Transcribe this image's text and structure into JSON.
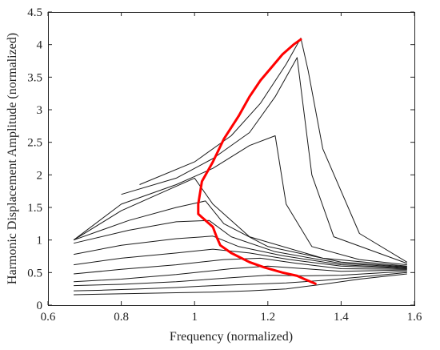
{
  "chart_data": {
    "type": "line",
    "title": "",
    "xlabel": "Frequency (normalized)",
    "ylabel": "Harmonic Displacement Amplitude (normalized)",
    "xlim": [
      0.6,
      1.6
    ],
    "ylim": [
      0,
      4.5
    ],
    "xticks": [
      "0.6",
      "0.8",
      "1",
      "1.2",
      "1.4",
      "1.6"
    ],
    "yticks": [
      "0",
      "0.5",
      "1",
      "1.5",
      "2",
      "2.5",
      "3",
      "3.5",
      "4",
      "4.5"
    ],
    "grid": false,
    "legend": "none",
    "colors": {
      "curves": "#1a1a1a",
      "backbone": "#ff0000",
      "frame": "#262626"
    },
    "curve_count": 24,
    "series": [
      {
        "role": "backbone",
        "x": [
          1.33,
          1.3,
          1.28,
          1.24,
          1.19,
          1.15,
          1.1,
          1.07,
          1.06,
          1.05,
          1.03,
          1.01,
          1.01,
          1.02,
          1.05,
          1.08,
          1.12,
          1.15,
          1.18,
          1.21,
          1.24,
          1.27,
          1.29
        ],
        "y": [
          0.33,
          0.4,
          0.45,
          0.5,
          0.58,
          0.66,
          0.8,
          0.92,
          1.05,
          1.2,
          1.3,
          1.4,
          1.55,
          1.9,
          2.2,
          2.55,
          2.9,
          3.2,
          3.45,
          3.65,
          3.85,
          4.0,
          4.08
        ]
      },
      {
        "role": "response",
        "x": [
          0.67,
          0.75,
          0.85,
          0.95,
          1.05,
          1.15,
          1.25,
          1.35,
          1.45,
          1.58
        ],
        "y": [
          0.16,
          0.17,
          0.18,
          0.19,
          0.2,
          0.22,
          0.25,
          0.32,
          0.4,
          0.48
        ]
      },
      {
        "role": "response",
        "x": [
          0.67,
          0.75,
          0.85,
          0.95,
          1.05,
          1.15,
          1.25,
          1.35,
          1.45,
          1.58
        ],
        "y": [
          0.22,
          0.23,
          0.25,
          0.27,
          0.3,
          0.32,
          0.34,
          0.38,
          0.43,
          0.5
        ]
      },
      {
        "role": "response",
        "x": [
          0.67,
          0.8,
          0.95,
          1.1,
          1.2,
          1.3,
          1.4,
          1.58
        ],
        "y": [
          0.3,
          0.32,
          0.36,
          0.42,
          0.46,
          0.45,
          0.46,
          0.52
        ]
      },
      {
        "role": "response",
        "x": [
          0.67,
          0.8,
          0.95,
          1.1,
          1.2,
          1.3,
          1.4,
          1.58
        ],
        "y": [
          0.36,
          0.4,
          0.47,
          0.56,
          0.6,
          0.56,
          0.52,
          0.54
        ]
      },
      {
        "role": "response",
        "x": [
          0.67,
          0.8,
          0.95,
          1.08,
          1.18,
          1.28,
          1.4,
          1.58
        ],
        "y": [
          0.48,
          0.55,
          0.62,
          0.7,
          0.72,
          0.64,
          0.56,
          0.55
        ]
      },
      {
        "role": "response",
        "x": [
          0.67,
          0.8,
          0.95,
          1.05,
          1.15,
          1.26,
          1.4,
          1.58
        ],
        "y": [
          0.62,
          0.72,
          0.8,
          0.86,
          0.8,
          0.7,
          0.6,
          0.56
        ]
      },
      {
        "role": "response",
        "x": [
          0.67,
          0.8,
          0.95,
          1.05,
          1.12,
          1.24,
          1.4,
          1.58
        ],
        "y": [
          0.78,
          0.92,
          1.02,
          1.06,
          0.9,
          0.76,
          0.62,
          0.57
        ]
      },
      {
        "role": "response",
        "x": [
          0.67,
          0.82,
          0.95,
          1.04,
          1.1,
          1.22,
          1.4,
          1.58
        ],
        "y": [
          0.95,
          1.15,
          1.28,
          1.3,
          1.05,
          0.82,
          0.64,
          0.58
        ]
      },
      {
        "role": "response",
        "x": [
          0.67,
          0.82,
          0.95,
          1.03,
          1.08,
          1.2,
          1.4,
          1.58
        ],
        "y": [
          1.0,
          1.3,
          1.5,
          1.6,
          1.25,
          0.9,
          0.66,
          0.59
        ]
      },
      {
        "role": "response",
        "x": [
          0.67,
          0.8,
          0.9,
          1.0,
          1.05,
          1.15,
          1.35,
          1.58
        ],
        "y": [
          1.0,
          1.45,
          1.7,
          1.95,
          1.55,
          1.05,
          0.72,
          0.6
        ]
      },
      {
        "role": "response",
        "x": [
          0.67,
          0.8,
          0.95,
          1.05,
          1.15,
          1.22,
          1.25,
          1.32,
          1.45,
          1.58
        ],
        "y": [
          1.0,
          1.55,
          1.85,
          2.1,
          2.45,
          2.6,
          1.55,
          0.9,
          0.7,
          0.62
        ]
      },
      {
        "role": "response",
        "x": [
          0.8,
          0.95,
          1.05,
          1.15,
          1.22,
          1.28,
          1.32,
          1.38,
          1.58
        ],
        "y": [
          1.7,
          1.95,
          2.25,
          2.65,
          3.2,
          3.8,
          2.0,
          1.05,
          0.64
        ]
      },
      {
        "role": "response",
        "x": [
          0.85,
          1.0,
          1.1,
          1.18,
          1.25,
          1.29,
          1.31,
          1.35,
          1.45,
          1.58
        ],
        "y": [
          1.85,
          2.2,
          2.6,
          3.1,
          3.7,
          4.1,
          3.6,
          2.4,
          1.1,
          0.66
        ]
      }
    ]
  }
}
